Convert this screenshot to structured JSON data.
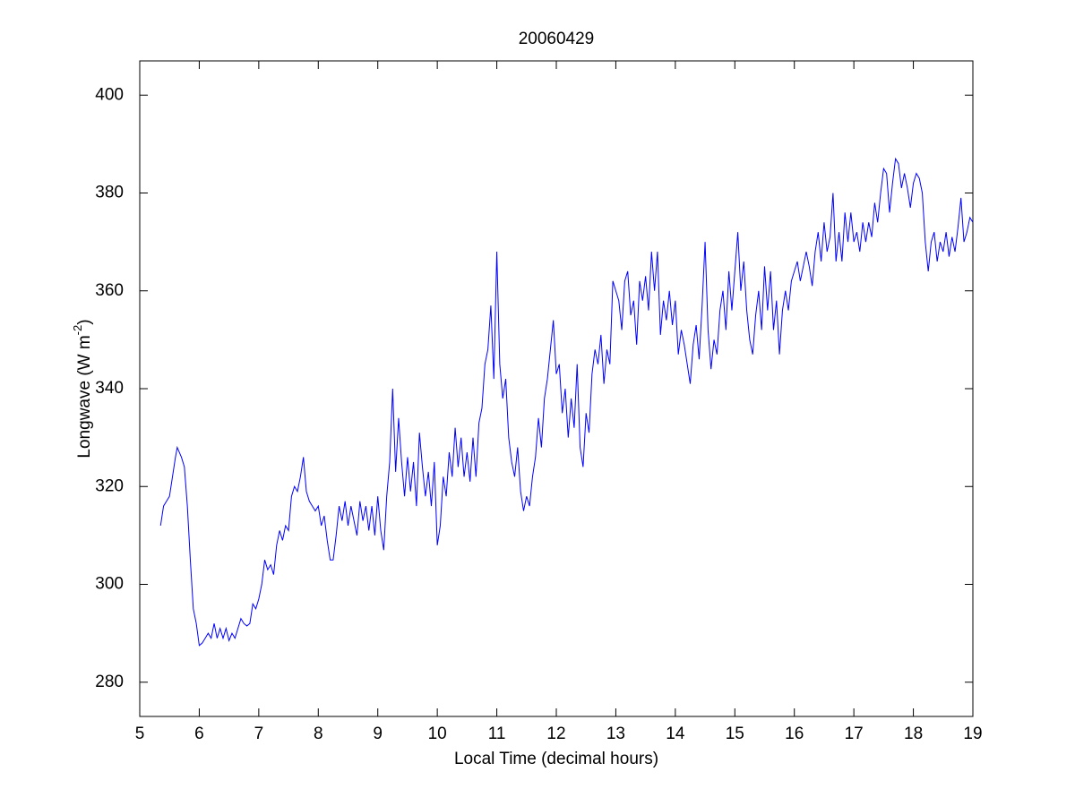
{
  "chart_data": {
    "type": "line",
    "title": "20060429",
    "xlabel": "Local Time (decimal hours)",
    "ylabel": {
      "text": "Longwave (W m",
      "superscript": "-2",
      "suffix": ")"
    },
    "x": [
      5.35,
      5.4,
      5.45,
      5.5,
      5.55,
      5.6,
      5.63,
      5.7,
      5.75,
      5.8,
      5.85,
      5.9,
      5.95,
      6.0,
      6.05,
      6.1,
      6.15,
      6.2,
      6.25,
      6.3,
      6.35,
      6.4,
      6.45,
      6.5,
      6.55,
      6.6,
      6.7,
      6.75,
      6.8,
      6.85,
      6.9,
      6.95,
      7.0,
      7.05,
      7.1,
      7.15,
      7.2,
      7.25,
      7.3,
      7.35,
      7.4,
      7.45,
      7.5,
      7.55,
      7.6,
      7.65,
      7.7,
      7.75,
      7.8,
      7.85,
      7.9,
      7.95,
      8.0,
      8.05,
      8.1,
      8.15,
      8.2,
      8.25,
      8.3,
      8.35,
      8.4,
      8.45,
      8.5,
      8.55,
      8.6,
      8.65,
      8.7,
      8.75,
      8.8,
      8.85,
      8.9,
      8.95,
      9.0,
      9.05,
      9.1,
      9.15,
      9.2,
      9.25,
      9.3,
      9.35,
      9.4,
      9.45,
      9.5,
      9.55,
      9.6,
      9.65,
      9.7,
      9.75,
      9.8,
      9.85,
      9.9,
      9.95,
      10.0,
      10.05,
      10.1,
      10.15,
      10.2,
      10.25,
      10.3,
      10.35,
      10.4,
      10.45,
      10.5,
      10.55,
      10.6,
      10.65,
      10.7,
      10.75,
      10.8,
      10.85,
      10.9,
      10.95,
      11.0,
      11.05,
      11.1,
      11.15,
      11.2,
      11.25,
      11.3,
      11.35,
      11.4,
      11.45,
      11.5,
      11.55,
      11.6,
      11.65,
      11.7,
      11.75,
      11.8,
      11.85,
      11.9,
      11.95,
      12.0,
      12.05,
      12.1,
      12.15,
      12.2,
      12.25,
      12.3,
      12.35,
      12.4,
      12.45,
      12.5,
      12.55,
      12.6,
      12.65,
      12.7,
      12.75,
      12.8,
      12.85,
      12.9,
      12.95,
      13.0,
      13.05,
      13.1,
      13.15,
      13.2,
      13.25,
      13.3,
      13.35,
      13.4,
      13.45,
      13.5,
      13.55,
      13.6,
      13.65,
      13.7,
      13.75,
      13.8,
      13.85,
      13.9,
      13.95,
      14.0,
      14.05,
      14.1,
      14.15,
      14.2,
      14.25,
      14.3,
      14.35,
      14.4,
      14.45,
      14.5,
      14.55,
      14.6,
      14.65,
      14.7,
      14.75,
      14.8,
      14.85,
      14.9,
      14.95,
      15.05,
      15.1,
      15.15,
      15.2,
      15.25,
      15.3,
      15.35,
      15.4,
      15.45,
      15.5,
      15.55,
      15.6,
      15.65,
      15.7,
      15.75,
      15.8,
      15.85,
      15.9,
      15.95,
      16.0,
      16.05,
      16.1,
      16.15,
      16.2,
      16.25,
      16.3,
      16.35,
      16.4,
      16.45,
      16.5,
      16.55,
      16.6,
      16.65,
      16.7,
      16.75,
      16.8,
      16.85,
      16.9,
      16.95,
      17.0,
      17.05,
      17.1,
      17.15,
      17.2,
      17.25,
      17.3,
      17.35,
      17.4,
      17.45,
      17.5,
      17.55,
      17.6,
      17.65,
      17.7,
      17.75,
      17.8,
      17.85,
      17.9,
      17.95,
      18.0,
      18.05,
      18.1,
      18.15,
      18.2,
      18.25,
      18.3,
      18.35,
      18.4,
      18.45,
      18.5,
      18.55,
      18.6,
      18.65,
      18.7,
      18.75,
      18.8,
      18.85,
      18.9,
      18.95,
      19.0
    ],
    "series": [
      {
        "color": "#0000ff",
        "values": [
          312,
          316,
          317,
          318,
          322,
          326,
          328,
          326,
          324,
          316,
          305,
          295,
          292,
          287.5,
          288,
          289,
          290,
          289,
          292,
          289,
          291,
          289,
          291,
          288.5,
          290,
          289,
          293,
          292,
          291.5,
          292,
          296,
          295,
          297,
          300,
          305,
          303,
          304,
          302,
          308,
          311,
          309,
          312,
          311,
          318,
          320,
          319,
          322,
          326,
          319,
          317,
          316,
          315,
          316,
          312,
          314,
          309,
          305,
          305,
          310,
          316,
          313,
          317,
          312,
          316,
          313,
          310,
          317,
          313,
          316,
          311,
          316,
          310,
          318,
          311,
          307,
          318,
          325,
          340,
          323,
          334,
          325,
          318,
          326,
          319,
          325,
          316,
          331,
          324,
          318,
          323,
          316,
          325,
          308,
          312,
          322,
          318,
          327,
          322,
          332,
          324,
          330,
          322,
          327,
          321,
          330,
          322,
          333,
          336,
          345,
          348,
          357,
          342,
          368,
          345,
          338,
          342,
          330,
          325,
          322,
          328,
          319,
          315,
          318,
          316,
          322,
          326,
          334,
          328,
          338,
          342,
          348,
          354,
          343,
          345,
          335,
          340,
          330,
          338,
          332,
          345,
          328,
          324,
          335,
          331,
          343,
          348,
          345,
          351,
          341,
          348,
          345,
          362,
          360,
          358,
          352,
          362,
          364,
          355,
          358,
          349,
          362,
          358,
          363,
          356,
          368,
          360,
          368,
          351,
          358,
          354,
          360,
          353,
          358,
          347,
          352,
          349,
          345,
          341,
          349,
          353,
          346,
          357,
          370,
          352,
          344,
          350,
          347,
          356,
          360,
          352,
          364,
          356,
          372,
          360,
          366,
          356,
          350,
          347,
          355,
          360,
          352,
          365,
          356,
          364,
          352,
          358,
          347,
          356,
          360,
          356,
          362,
          364,
          366,
          362,
          365,
          368,
          365,
          361,
          368,
          372,
          366,
          374,
          368,
          371,
          380,
          366,
          372,
          366,
          376,
          370,
          376,
          370,
          372,
          368,
          374,
          370,
          374,
          371,
          378,
          374,
          380,
          385,
          384,
          376,
          382,
          387,
          386,
          381,
          384,
          381,
          377,
          382,
          384,
          383,
          380,
          370,
          364,
          370,
          372,
          366,
          370,
          368,
          372,
          367,
          371,
          368,
          373,
          379,
          370,
          372,
          375,
          374
        ]
      }
    ],
    "xlim": [
      5,
      19
    ],
    "ylim": [
      273,
      407
    ],
    "xticks": [
      5,
      6,
      7,
      8,
      9,
      10,
      11,
      12,
      13,
      14,
      15,
      16,
      17,
      18,
      19
    ],
    "yticks": [
      280,
      300,
      320,
      340,
      360,
      380,
      400
    ]
  }
}
